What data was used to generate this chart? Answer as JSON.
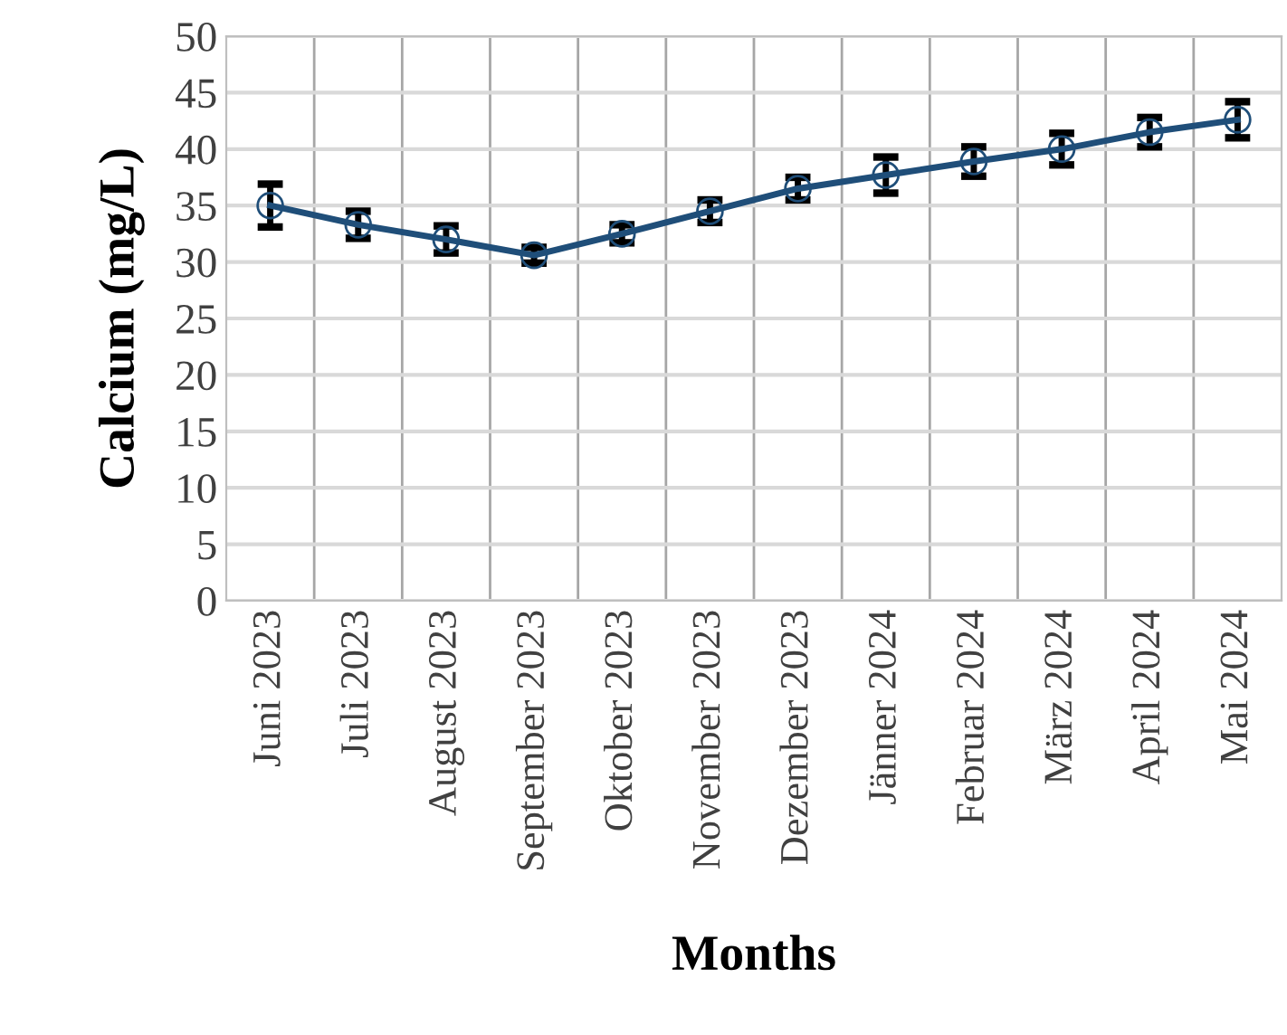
{
  "chart_data": {
    "type": "line",
    "xlabel": "Months",
    "ylabel": "Calcium (mg/L)",
    "categories": [
      "Juni 2023",
      "Juli 2023",
      "August 2023",
      "September 2023",
      "Oktober 2023",
      "November 2023",
      "Dezember 2023",
      "Jänner 2024",
      "Februar 2024",
      "März 2024",
      "April 2024",
      "Mai 2024"
    ],
    "series": [
      {
        "color": "#1f4e79",
        "values": [
          35.0,
          33.3,
          32.0,
          30.6,
          32.5,
          34.5,
          36.5,
          37.7,
          38.9,
          40.0,
          41.5,
          42.6
        ],
        "errors": [
          1.9,
          1.2,
          1.2,
          0.7,
          0.8,
          1.0,
          1.0,
          1.6,
          1.3,
          1.4,
          1.3,
          1.6
        ]
      }
    ],
    "ylim": [
      0,
      50
    ],
    "yticks": [
      0,
      5,
      10,
      15,
      20,
      25,
      30,
      35,
      40,
      45,
      50
    ],
    "grid": true,
    "marker": "circle",
    "line_style": "solid"
  }
}
